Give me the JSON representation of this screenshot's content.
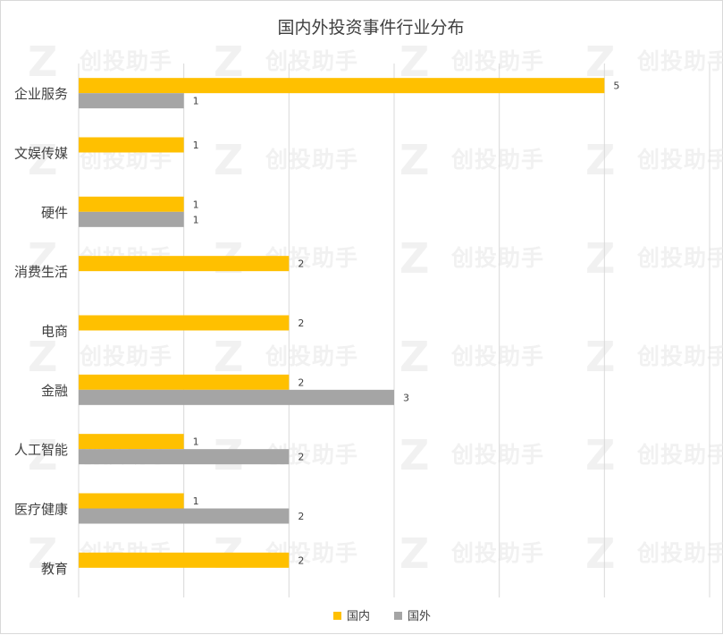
{
  "watermark": {
    "mark": "Z",
    "text": "创投助手"
  },
  "chart_data": {
    "type": "bar",
    "orientation": "horizontal",
    "title": "国内外投资事件行业分布",
    "categories": [
      "企业服务",
      "文娱传媒",
      "硬件",
      "消费生活",
      "电商",
      "金融",
      "人工智能",
      "医疗健康",
      "教育"
    ],
    "series": [
      {
        "name": "国内",
        "color": "#FFC000",
        "values": [
          5,
          1,
          1,
          2,
          2,
          2,
          1,
          1,
          2
        ]
      },
      {
        "name": "国外",
        "color": "#A5A5A5",
        "values": [
          1,
          null,
          1,
          null,
          null,
          3,
          2,
          2,
          null
        ]
      }
    ],
    "xlim": [
      0,
      6
    ],
    "grid": true,
    "show_tick_labels": false,
    "data_labels": true,
    "legend": "bottom"
  }
}
